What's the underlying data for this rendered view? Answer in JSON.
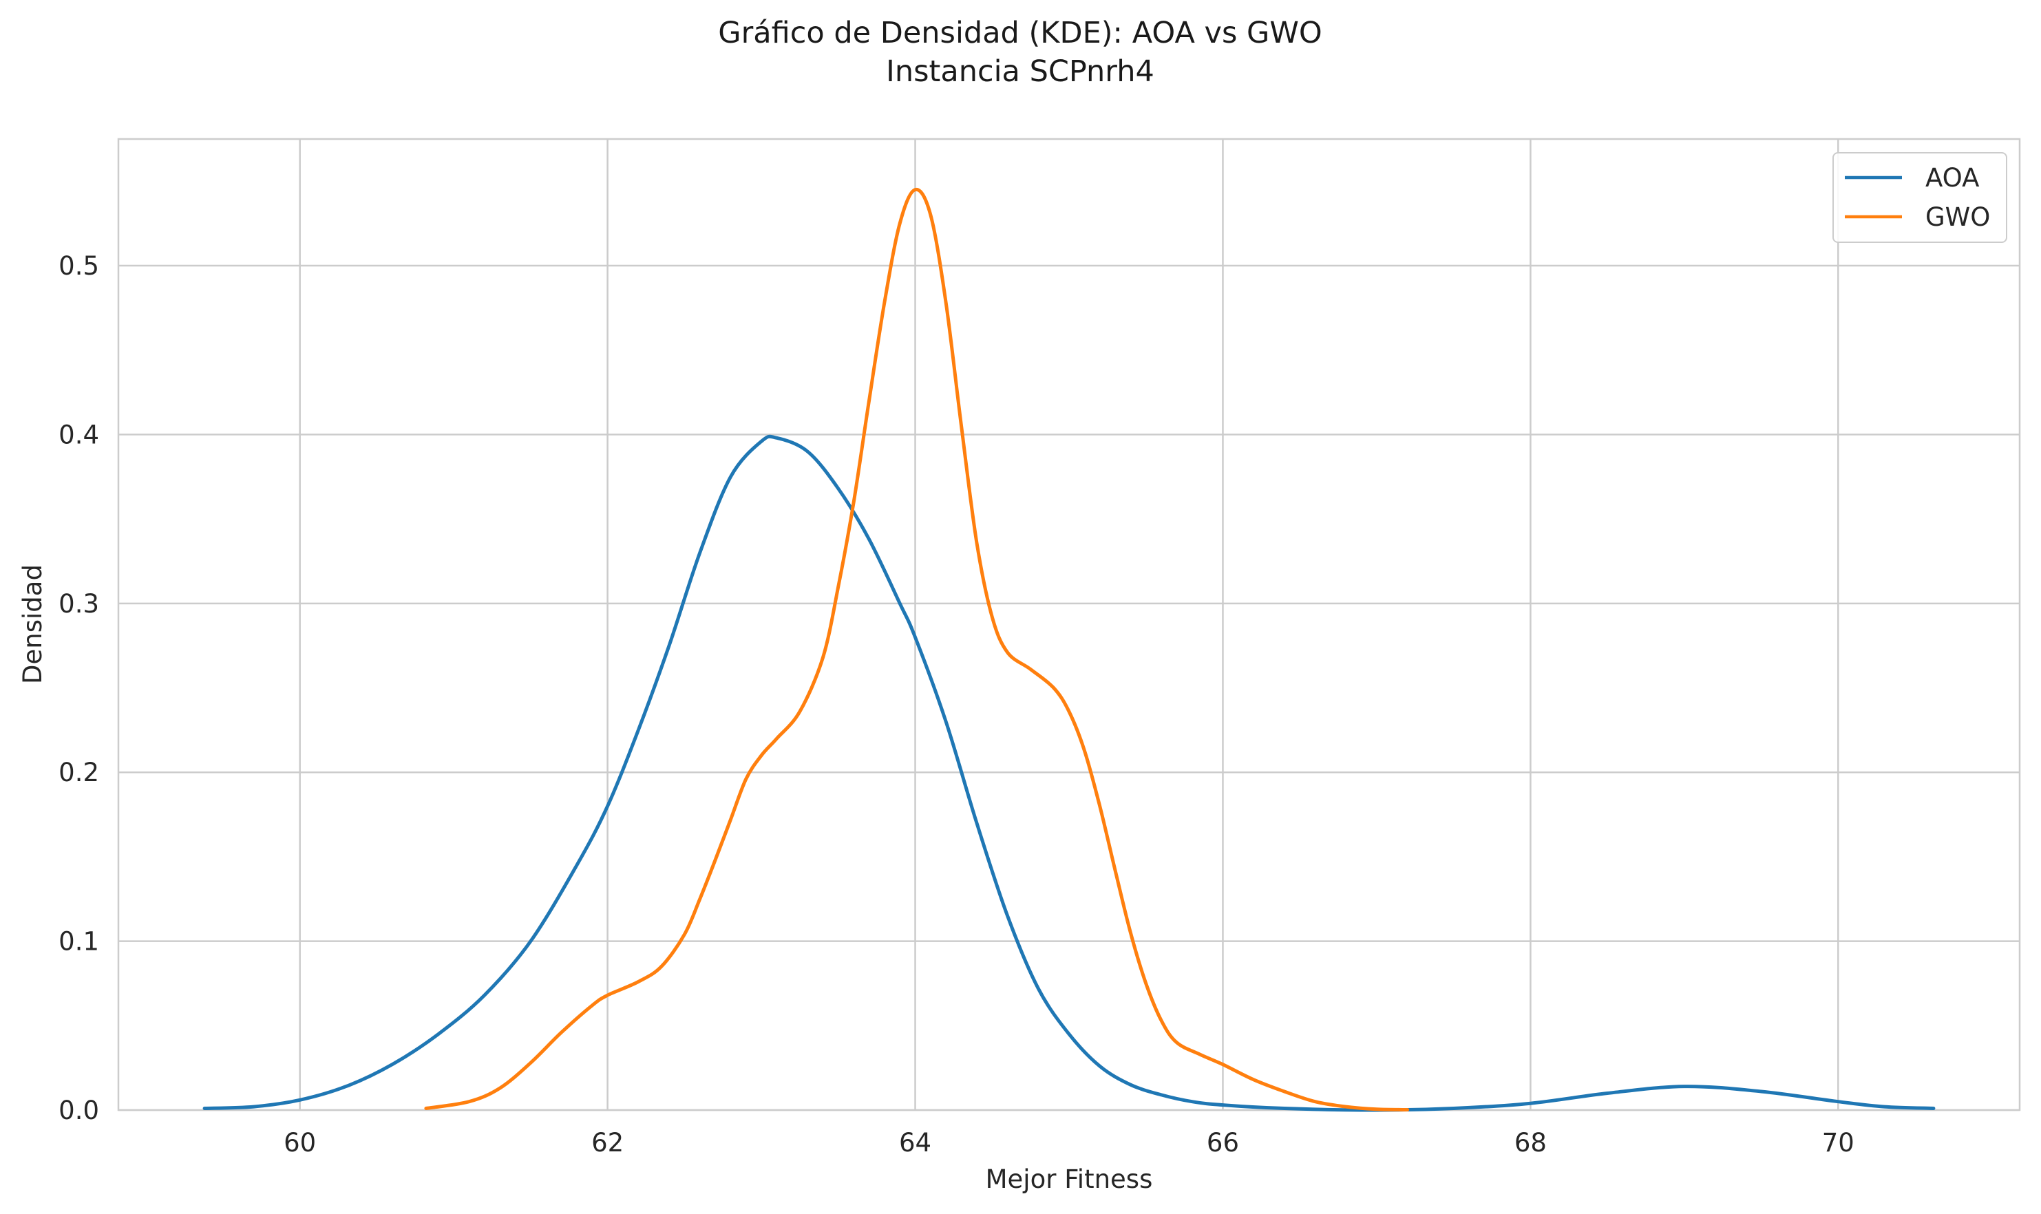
{
  "chart_data": {
    "type": "line",
    "title": "Gráfico de Densidad (KDE): AOA vs GWO",
    "subtitle": "Instancia SCPnrh4",
    "xlabel": "Mejor Fitness",
    "ylabel": "Densidad",
    "xlim": [
      58.82,
      71.18
    ],
    "ylim": [
      0.0,
      0.575
    ],
    "xticks": [
      60,
      62,
      64,
      66,
      68,
      70
    ],
    "yticks": [
      0.0,
      0.1,
      0.2,
      0.3,
      0.4,
      0.5
    ],
    "xtick_labels": [
      "60",
      "62",
      "64",
      "66",
      "68",
      "70"
    ],
    "ytick_labels": [
      "0.0",
      "0.1",
      "0.2",
      "0.3",
      "0.4",
      "0.5"
    ],
    "grid": true,
    "legend_position": "top-right",
    "series": [
      {
        "name": "AOA",
        "color": "#1f77b4",
        "points": [
          [
            59.38,
            0.001
          ],
          [
            59.7,
            0.002
          ],
          [
            60.0,
            0.006
          ],
          [
            60.3,
            0.014
          ],
          [
            60.6,
            0.027
          ],
          [
            60.9,
            0.045
          ],
          [
            61.2,
            0.068
          ],
          [
            61.5,
            0.1
          ],
          [
            61.8,
            0.145
          ],
          [
            62.0,
            0.18
          ],
          [
            62.2,
            0.225
          ],
          [
            62.4,
            0.275
          ],
          [
            62.6,
            0.33
          ],
          [
            62.8,
            0.375
          ],
          [
            63.0,
            0.396
          ],
          [
            63.1,
            0.398
          ],
          [
            63.3,
            0.39
          ],
          [
            63.5,
            0.368
          ],
          [
            63.7,
            0.338
          ],
          [
            63.9,
            0.3
          ],
          [
            64.0,
            0.28
          ],
          [
            64.2,
            0.23
          ],
          [
            64.4,
            0.17
          ],
          [
            64.6,
            0.115
          ],
          [
            64.8,
            0.072
          ],
          [
            65.0,
            0.045
          ],
          [
            65.2,
            0.026
          ],
          [
            65.4,
            0.015
          ],
          [
            65.6,
            0.009
          ],
          [
            65.8,
            0.005
          ],
          [
            66.0,
            0.003
          ],
          [
            66.4,
            0.001
          ],
          [
            67.0,
            0.0
          ],
          [
            67.5,
            0.001
          ],
          [
            68.0,
            0.004
          ],
          [
            68.5,
            0.01
          ],
          [
            69.0,
            0.014
          ],
          [
            69.5,
            0.011
          ],
          [
            70.0,
            0.005
          ],
          [
            70.3,
            0.002
          ],
          [
            70.62,
            0.001
          ]
        ]
      },
      {
        "name": "GWO",
        "color": "#ff7f0e",
        "points": [
          [
            60.82,
            0.001
          ],
          [
            61.1,
            0.005
          ],
          [
            61.3,
            0.013
          ],
          [
            61.5,
            0.028
          ],
          [
            61.7,
            0.046
          ],
          [
            61.9,
            0.062
          ],
          [
            62.0,
            0.068
          ],
          [
            62.2,
            0.076
          ],
          [
            62.35,
            0.085
          ],
          [
            62.5,
            0.104
          ],
          [
            62.6,
            0.125
          ],
          [
            62.7,
            0.148
          ],
          [
            62.8,
            0.172
          ],
          [
            62.9,
            0.196
          ],
          [
            63.0,
            0.21
          ],
          [
            63.1,
            0.22
          ],
          [
            63.25,
            0.236
          ],
          [
            63.4,
            0.268
          ],
          [
            63.5,
            0.31
          ],
          [
            63.6,
            0.36
          ],
          [
            63.7,
            0.42
          ],
          [
            63.8,
            0.478
          ],
          [
            63.9,
            0.525
          ],
          [
            64.0,
            0.545
          ],
          [
            64.1,
            0.53
          ],
          [
            64.2,
            0.478
          ],
          [
            64.3,
            0.405
          ],
          [
            64.4,
            0.336
          ],
          [
            64.5,
            0.292
          ],
          [
            64.6,
            0.271
          ],
          [
            64.75,
            0.261
          ],
          [
            64.9,
            0.25
          ],
          [
            65.0,
            0.236
          ],
          [
            65.1,
            0.213
          ],
          [
            65.2,
            0.18
          ],
          [
            65.3,
            0.142
          ],
          [
            65.4,
            0.105
          ],
          [
            65.5,
            0.075
          ],
          [
            65.6,
            0.053
          ],
          [
            65.7,
            0.04
          ],
          [
            65.85,
            0.033
          ],
          [
            66.0,
            0.027
          ],
          [
            66.2,
            0.018
          ],
          [
            66.4,
            0.011
          ],
          [
            66.6,
            0.005
          ],
          [
            66.8,
            0.002
          ],
          [
            67.0,
            0.0005
          ],
          [
            67.2,
            0.0002
          ]
        ]
      }
    ]
  }
}
